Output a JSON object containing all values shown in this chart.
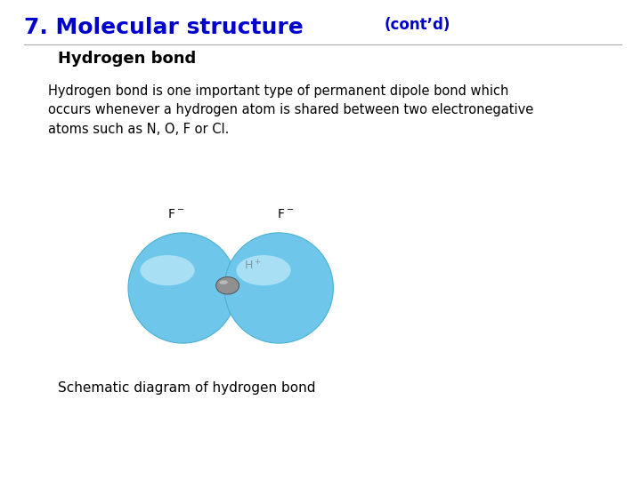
{
  "title_part1": "7. Molecular structure",
  "title_part2": "(cont’d)",
  "subtitle": "Hydrogen bond",
  "body_text": "Hydrogen bond is one important type of permanent dipole bond which\noccurs whenever a hydrogen atom is shared between two electronegative\natoms such as N, O, F or Cl.",
  "caption": "Schematic diagram of hydrogen bond",
  "title_color": "#0000CC",
  "subtitle_color": "#000000",
  "body_color": "#000000",
  "caption_color": "#000000",
  "bg_color": "#ffffff",
  "sphere_base_color": "#6EC6EA",
  "sphere_highlight_color": "#C8EEFA",
  "hydrogen_color": "#909090",
  "hydrogen_highlight": "#C8C8C8"
}
